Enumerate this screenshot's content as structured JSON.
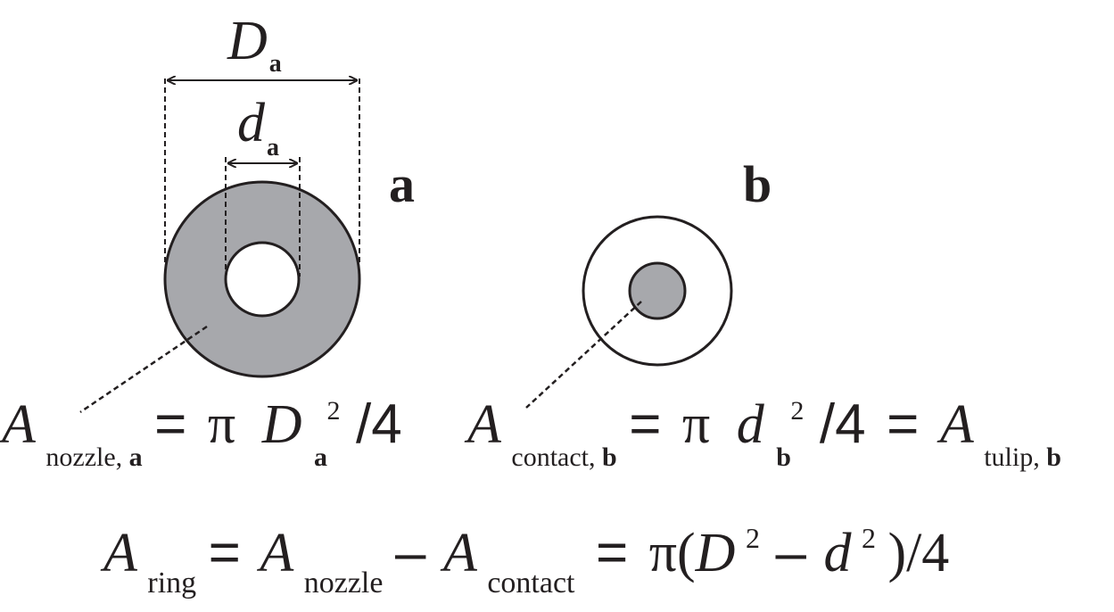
{
  "dimensions": {
    "outer_diameter": {
      "symbol": "D",
      "subscript": "a"
    },
    "inner_diameter": {
      "symbol": "d",
      "subscript": "a"
    }
  },
  "panels": {
    "a": {
      "label": "a"
    },
    "b": {
      "label": "b"
    }
  },
  "equations": {
    "nozzle": {
      "lhs_symbol": "A",
      "lhs_subscript": "nozzle, ",
      "lhs_subscript_bold": "a",
      "eq": "=",
      "pi": "π",
      "var": "D",
      "var_subscript": "a",
      "exp": "2",
      "tail": "/4"
    },
    "contact": {
      "lhs_symbol": "A",
      "lhs_subscript": "contact, ",
      "lhs_subscript_bold": "b",
      "eq": "=",
      "pi": "π",
      "var": "d",
      "var_subscript": "b",
      "exp": "2",
      "tail": "/4",
      "eq2": "=",
      "rhs_symbol": "A",
      "rhs_subscript": "tulip, ",
      "rhs_subscript_bold": "b"
    },
    "ring": {
      "a1": "A",
      "s1": "ring",
      "eq": "=",
      "a2": "A",
      "s2": "nozzle",
      "minus": "–",
      "a3": "A",
      "s3": "contact",
      "eq2": "=",
      "pi_open": "π(",
      "D": "D",
      "exp1": "2",
      "minus2": "–",
      "d": "d",
      "exp2": "2",
      "close": ")/4"
    }
  },
  "colors": {
    "fill": "#a7a8ac",
    "stroke": "#231f20",
    "background": "#ffffff"
  }
}
